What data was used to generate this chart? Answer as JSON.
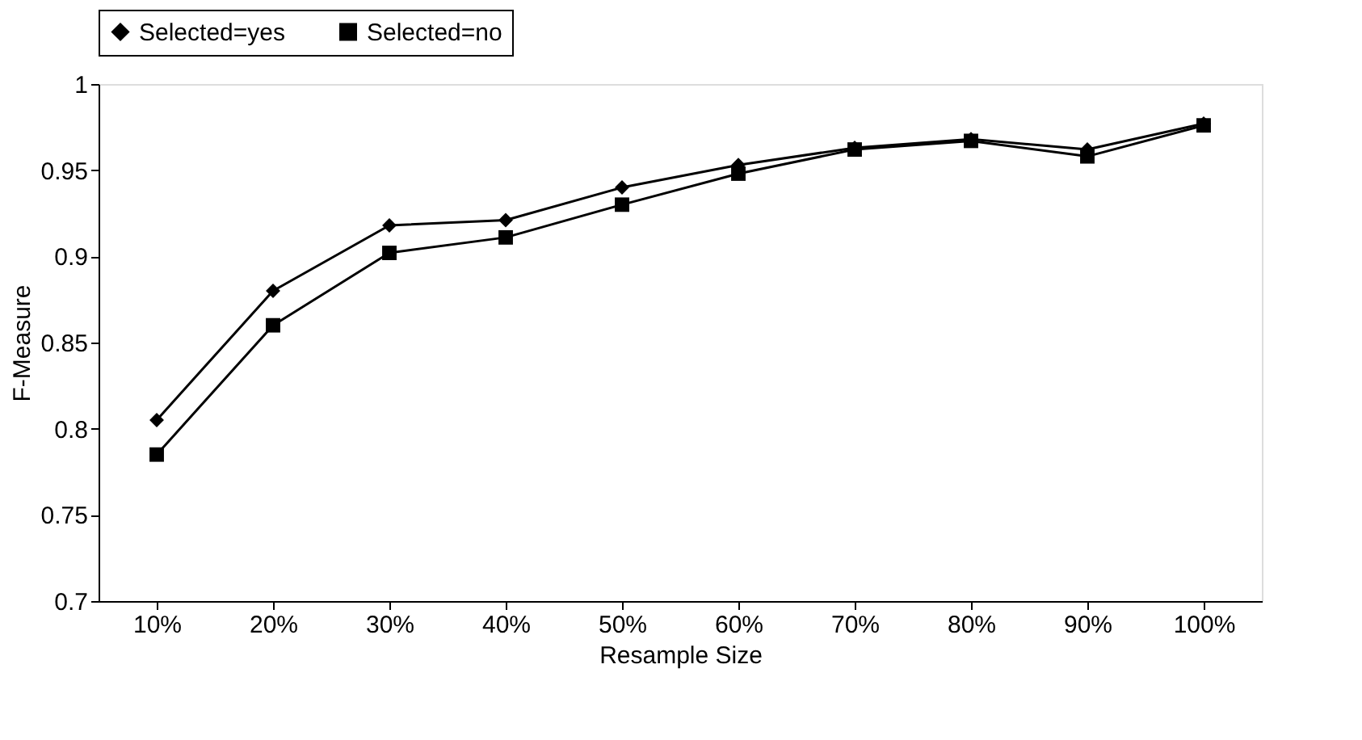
{
  "chart_data": {
    "type": "line",
    "xlabel": "Resample Size",
    "ylabel": "F-Measure",
    "categories": [
      "10%",
      "20%",
      "30%",
      "40%",
      "50%",
      "60%",
      "70%",
      "80%",
      "90%",
      "100%"
    ],
    "ylim": [
      0.7,
      1
    ],
    "yticks": [
      0.7,
      0.75,
      0.8,
      0.85,
      0.9,
      0.95,
      1
    ],
    "grid": false,
    "legend": "top",
    "series": [
      {
        "name": "Selected=yes",
        "color": "#000000",
        "marker": "diamond",
        "values": [
          0.805,
          0.88,
          0.918,
          0.921,
          0.94,
          0.953,
          0.963,
          0.968,
          0.962,
          0.977
        ]
      },
      {
        "name": "Selected=no",
        "color": "#000000",
        "marker": "square",
        "values": [
          0.785,
          0.86,
          0.902,
          0.911,
          0.93,
          0.948,
          0.962,
          0.967,
          0.958,
          0.976
        ]
      }
    ]
  }
}
